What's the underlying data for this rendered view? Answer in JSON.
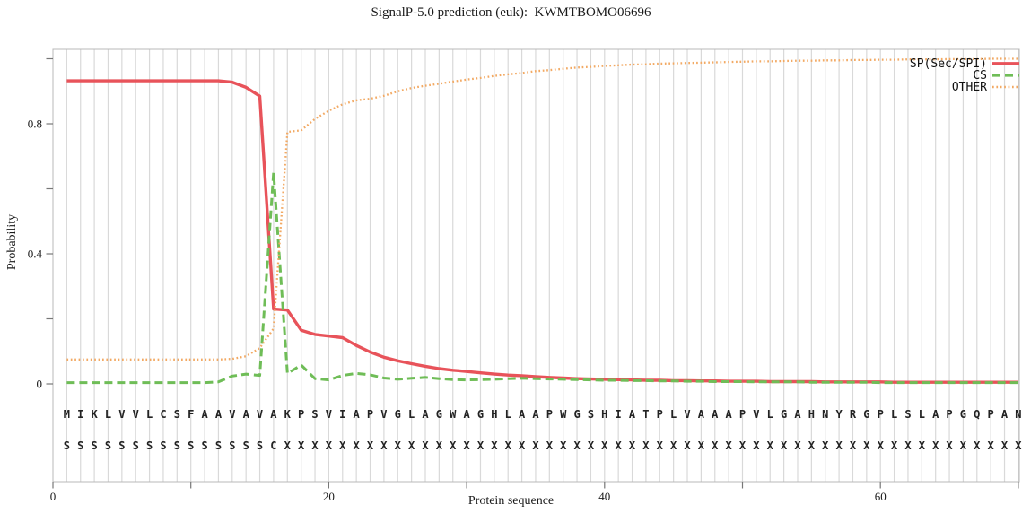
{
  "title": "SignalP-5.0 prediction (euk):  KWMTBOMO06696",
  "colors": {
    "sp": "#e8535a",
    "cs": "#6fbd57",
    "other": "#f2a963",
    "grid": "#d9d9d9",
    "frame": "#b8b8b8",
    "tick": "#777777",
    "text": "#1a1a1a"
  },
  "chart_data": {
    "type": "line",
    "title": "SignalP-5.0 prediction (euk):  KWMTBOMO06696",
    "xlabel": "Protein sequence",
    "ylabel": "Probability",
    "xlim": [
      0,
      70.1
    ],
    "ylim": [
      0,
      1.05
    ],
    "grid": "vertical-line-per-residue",
    "legend_position": "top-right-inside",
    "x_ticks": [
      0,
      10,
      20,
      30,
      40,
      50,
      60,
      70
    ],
    "x_tick_labels": [
      "0",
      "",
      "20",
      "",
      "40",
      "",
      "60",
      ""
    ],
    "y_ticks": [
      0,
      0.2,
      0.4,
      0.6,
      0.8,
      1.0
    ],
    "y_tick_labels": [
      "0",
      "",
      "0.4",
      "",
      "0.8",
      ""
    ],
    "sequence": "MIKLVVLCSFAAVAVAKPSVIAPVGLAGWAGHLAAPWGSHIATPLVAAAPVLGAHNYRGPLSLAPGQPAN",
    "marker_line": "SSSSSSSSSSSSSSSCXXXXXXXXXXXXXXXXXXXXXXXXXXXXXXXXXXXXXXXXXXXXXXXXXXXXXX",
    "x": [
      1,
      2,
      3,
      4,
      5,
      6,
      7,
      8,
      9,
      10,
      11,
      12,
      13,
      14,
      15,
      16,
      17,
      18,
      19,
      20,
      21,
      22,
      23,
      24,
      25,
      26,
      27,
      28,
      29,
      30,
      31,
      32,
      33,
      34,
      35,
      36,
      37,
      38,
      39,
      40,
      41,
      42,
      43,
      44,
      45,
      46,
      47,
      48,
      49,
      50,
      51,
      52,
      53,
      54,
      55,
      56,
      57,
      58,
      59,
      60,
      61,
      62,
      63,
      64,
      65,
      66,
      67,
      68,
      69,
      70
    ],
    "series": [
      {
        "name": "SP(Sec/SPI)",
        "style": "solid",
        "color": "#e8535a",
        "values": [
          0.932,
          0.932,
          0.932,
          0.932,
          0.932,
          0.932,
          0.932,
          0.932,
          0.932,
          0.932,
          0.932,
          0.932,
          0.928,
          0.912,
          0.885,
          0.23,
          0.227,
          0.165,
          0.152,
          0.147,
          0.142,
          0.118,
          0.098,
          0.082,
          0.071,
          0.062,
          0.054,
          0.047,
          0.042,
          0.038,
          0.034,
          0.03,
          0.027,
          0.025,
          0.022,
          0.02,
          0.018,
          0.016,
          0.015,
          0.014,
          0.013,
          0.012,
          0.011,
          0.011,
          0.01,
          0.01,
          0.009,
          0.009,
          0.008,
          0.008,
          0.008,
          0.007,
          0.007,
          0.007,
          0.007,
          0.006,
          0.006,
          0.006,
          0.006,
          0.006,
          0.005,
          0.005,
          0.005,
          0.005,
          0.005,
          0.005,
          0.005,
          0.005,
          0.005,
          0.005
        ]
      },
      {
        "name": "CS",
        "style": "dashed",
        "color": "#6fbd57",
        "values": [
          0.004,
          0.004,
          0.004,
          0.004,
          0.004,
          0.004,
          0.004,
          0.004,
          0.004,
          0.004,
          0.004,
          0.006,
          0.024,
          0.03,
          0.026,
          0.65,
          0.032,
          0.058,
          0.016,
          0.012,
          0.026,
          0.032,
          0.028,
          0.018,
          0.014,
          0.017,
          0.02,
          0.016,
          0.013,
          0.012,
          0.013,
          0.014,
          0.016,
          0.017,
          0.016,
          0.015,
          0.014,
          0.013,
          0.012,
          0.011,
          0.011,
          0.01,
          0.01,
          0.009,
          0.009,
          0.008,
          0.008,
          0.007,
          0.007,
          0.007,
          0.006,
          0.006,
          0.006,
          0.006,
          0.005,
          0.005,
          0.005,
          0.005,
          0.005,
          0.004,
          0.004,
          0.004,
          0.004,
          0.004,
          0.004,
          0.004,
          0.004,
          0.004,
          0.004,
          0.004
        ]
      },
      {
        "name": "OTHER",
        "style": "dotted",
        "color": "#f2a963",
        "values": [
          0.075,
          0.075,
          0.075,
          0.075,
          0.075,
          0.075,
          0.075,
          0.075,
          0.075,
          0.075,
          0.075,
          0.075,
          0.077,
          0.085,
          0.11,
          0.17,
          0.775,
          0.78,
          0.815,
          0.84,
          0.86,
          0.872,
          0.877,
          0.886,
          0.9,
          0.91,
          0.917,
          0.923,
          0.93,
          0.936,
          0.941,
          0.947,
          0.952,
          0.956,
          0.962,
          0.965,
          0.969,
          0.973,
          0.975,
          0.978,
          0.98,
          0.982,
          0.983,
          0.985,
          0.986,
          0.987,
          0.988,
          0.989,
          0.99,
          0.991,
          0.992,
          0.992,
          0.993,
          0.994,
          0.994,
          0.995,
          0.995,
          0.996,
          0.996,
          0.997,
          0.997,
          0.998,
          0.998,
          0.998,
          0.999,
          0.999,
          0.999,
          1.0,
          1.0,
          1.0
        ]
      }
    ]
  }
}
